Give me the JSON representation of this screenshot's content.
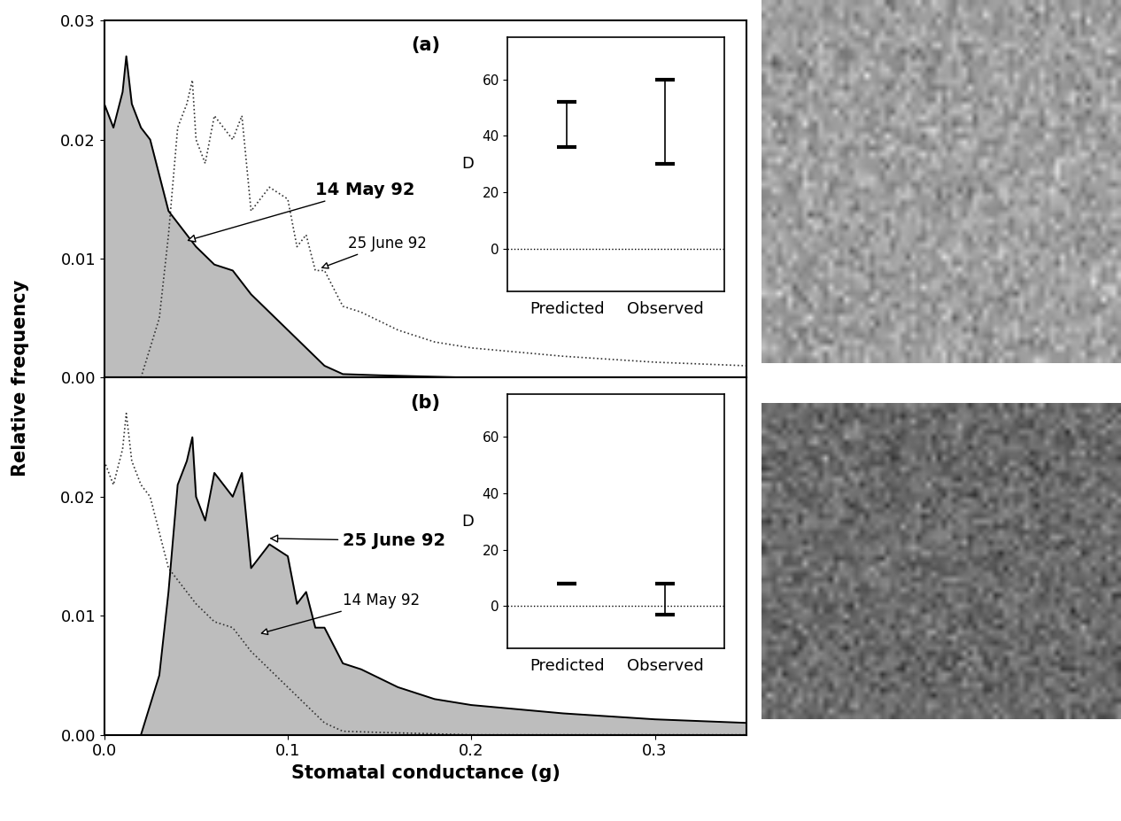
{
  "chart_data": [
    {
      "type": "line",
      "label": "(a)",
      "xlim": [
        0,
        0.35
      ],
      "xticks": [
        0.0,
        0.1,
        0.2,
        0.3
      ],
      "ylim": [
        0,
        0.03
      ],
      "yticks": [
        {
          "value": 0,
          "label": "0.00"
        },
        {
          "value": 0.01,
          "label": "0.01"
        },
        {
          "value": 0.02,
          "label": "0.02"
        },
        {
          "value": 0.03,
          "label": "0.03"
        }
      ],
      "tick_labels": "y",
      "series": [
        {
          "name": "14 May 92",
          "type": "area",
          "color": "#555555",
          "line_style": "solid",
          "x": [
            0,
            0.005,
            0.01,
            0.012,
            0.015,
            0.02,
            0.025,
            0.03,
            0.035,
            0.04,
            0.045,
            0.05,
            0.06,
            0.07,
            0.08,
            0.09,
            0.1,
            0.11,
            0.12,
            0.13,
            0.15,
            0.2,
            0.35
          ],
          "values": [
            0.023,
            0.021,
            0.024,
            0.027,
            0.023,
            0.021,
            0.02,
            0.017,
            0.014,
            0.013,
            0.012,
            0.011,
            0.0095,
            0.009,
            0.007,
            0.0055,
            0.004,
            0.0025,
            0.001,
            0.0003,
            0.0002,
            0.0,
            0.0
          ]
        },
        {
          "name": "25 June 92",
          "type": "line",
          "color": "#333333",
          "line_style": "dotted",
          "x": [
            0.02,
            0.03,
            0.035,
            0.04,
            0.045,
            0.048,
            0.05,
            0.055,
            0.06,
            0.065,
            0.07,
            0.075,
            0.08,
            0.09,
            0.1,
            0.105,
            0.11,
            0.115,
            0.12,
            0.13,
            0.14,
            0.16,
            0.18,
            0.2,
            0.25,
            0.3,
            0.35
          ],
          "values": [
            0.0,
            0.005,
            0.012,
            0.021,
            0.023,
            0.025,
            0.02,
            0.018,
            0.022,
            0.021,
            0.02,
            0.022,
            0.014,
            0.016,
            0.015,
            0.011,
            0.012,
            0.009,
            0.009,
            0.006,
            0.0055,
            0.004,
            0.003,
            0.0025,
            0.0018,
            0.0013,
            0.001
          ]
        }
      ],
      "annotations": [
        {
          "text": "14 May 92",
          "series": "14 May 92",
          "xy": [
            0.045,
            0.0115
          ],
          "xytext": [
            0.115,
            0.0158
          ]
        },
        {
          "text": "25 June 92",
          "series": "25 June 92",
          "xy": [
            0.118,
            0.0092
          ],
          "xytext": [
            0.133,
            0.0113
          ]
        }
      ]
    },
    {
      "type": "line",
      "label": "(b)",
      "xlim": [
        0,
        0.35
      ],
      "xticks": [
        0.0,
        0.1,
        0.2,
        0.3
      ],
      "ylim": [
        0,
        0.03
      ],
      "yticks": [
        {
          "value": 0,
          "label": "0.00"
        },
        {
          "value": 0.01,
          "label": "0.01"
        },
        {
          "value": 0.02,
          "label": "0.02"
        }
      ],
      "xlabel": "Stomatal conductance (g)",
      "series": [
        {
          "name": "25 June 92",
          "type": "area",
          "color": "#555555",
          "line_style": "solid",
          "x": [
            0.02,
            0.03,
            0.035,
            0.04,
            0.045,
            0.048,
            0.05,
            0.055,
            0.06,
            0.065,
            0.07,
            0.075,
            0.08,
            0.09,
            0.1,
            0.105,
            0.11,
            0.115,
            0.12,
            0.13,
            0.14,
            0.16,
            0.18,
            0.2,
            0.25,
            0.3,
            0.35
          ],
          "values": [
            0.0,
            0.005,
            0.012,
            0.021,
            0.023,
            0.025,
            0.02,
            0.018,
            0.022,
            0.021,
            0.02,
            0.022,
            0.014,
            0.016,
            0.015,
            0.011,
            0.012,
            0.009,
            0.009,
            0.006,
            0.0055,
            0.004,
            0.003,
            0.0025,
            0.0018,
            0.0013,
            0.001
          ]
        },
        {
          "name": "14 May 92",
          "type": "line",
          "color": "#333333",
          "line_style": "dotted",
          "x": [
            0,
            0.005,
            0.01,
            0.012,
            0.015,
            0.02,
            0.025,
            0.03,
            0.035,
            0.04,
            0.045,
            0.05,
            0.06,
            0.07,
            0.08,
            0.09,
            0.1,
            0.11,
            0.12,
            0.13,
            0.15,
            0.2,
            0.35
          ],
          "values": [
            0.023,
            0.021,
            0.024,
            0.027,
            0.023,
            0.021,
            0.02,
            0.017,
            0.014,
            0.013,
            0.012,
            0.011,
            0.0095,
            0.009,
            0.007,
            0.0055,
            0.004,
            0.0025,
            0.001,
            0.0003,
            0.0002,
            0.0,
            0.0
          ]
        }
      ],
      "annotations": [
        {
          "text": "25 June 92",
          "series": "25 June 92",
          "xy": [
            0.09,
            0.0165
          ],
          "xytext": [
            0.13,
            0.0163
          ]
        },
        {
          "text": "14 May 92",
          "series": "14 May 92",
          "xy": [
            0.085,
            0.0085
          ],
          "xytext": [
            0.13,
            0.0113
          ]
        }
      ]
    },
    {
      "type": "interval",
      "categories": [
        "Predicted",
        "Observed"
      ],
      "low": [
        36,
        30
      ],
      "high": [
        52,
        60
      ],
      "ylabel": "D",
      "ylim": [
        -15,
        75
      ],
      "yticks": [
        0,
        20,
        40,
        60
      ],
      "reference_line": 0
    },
    {
      "type": "interval",
      "categories": [
        "Predicted",
        "Observed"
      ],
      "low": [
        8,
        -3
      ],
      "high": [
        8,
        8
      ],
      "ylabel": "D",
      "ylim": [
        -15,
        75
      ],
      "yticks": [
        0,
        20,
        40,
        60
      ],
      "reference_line": 0
    }
  ],
  "ylabel": "Relative frequency"
}
